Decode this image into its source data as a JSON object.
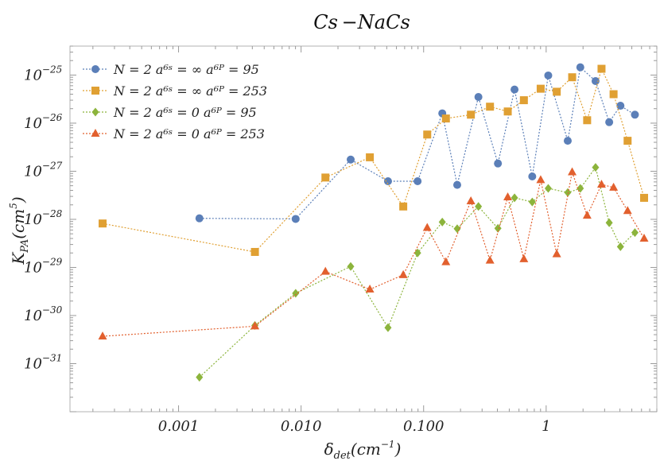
{
  "chart_data": {
    "type": "scatter",
    "title": "Cs −NaCs",
    "xlabel": {
      "main": "δ",
      "sub": "det",
      "unit_main": "(cm",
      "unit_sup": "−1",
      "unit_end": ")"
    },
    "ylabel": {
      "main": "K",
      "sub": "PA",
      "unit_main": "(cm",
      "unit_sup": "5",
      "unit_end": ")"
    },
    "x_scale": "log",
    "y_scale": "log",
    "xlim": [
      0.00013,
      8
    ],
    "ylim": [
      1e-32,
      4e-25
    ],
    "x_ticks": [
      {
        "value": 0.001,
        "label": "0.001"
      },
      {
        "value": 0.01,
        "label": "0.010"
      },
      {
        "value": 0.1,
        "label": "0.100"
      },
      {
        "value": 1,
        "label": "1"
      }
    ],
    "y_ticks": [
      {
        "exp": -31,
        "base": "10",
        "sup": "−31"
      },
      {
        "exp": -30,
        "base": "10",
        "sup": "−30"
      },
      {
        "exp": -29,
        "base": "10",
        "sup": "−29"
      },
      {
        "exp": -28,
        "base": "10",
        "sup": "−28"
      },
      {
        "exp": -27,
        "base": "10",
        "sup": "−27"
      },
      {
        "exp": -26,
        "base": "10",
        "sup": "−26"
      },
      {
        "exp": -25,
        "base": "10",
        "sup": "−25"
      }
    ],
    "legend_position": "top-left",
    "series": [
      {
        "name": "N = 2 a⁶ˢ = ∞ a⁶ᴾ = 95",
        "color": "#5b7fb8",
        "marker": "circle",
        "x": [
          0.00148,
          0.00903,
          0.0254,
          0.0512,
          0.0893,
          0.142,
          0.188,
          0.28,
          0.404,
          0.552,
          0.77,
          1.04,
          1.5,
          1.9,
          2.53,
          3.27,
          4.04,
          5.3
        ],
        "y": [
          1.05e-28,
          1.02e-28,
          1.75e-27,
          6.2e-28,
          6.2e-28,
          1.6e-26,
          5.2e-28,
          3.5e-26,
          1.45e-27,
          5e-26,
          7.8e-28,
          9.8e-26,
          4.3e-27,
          1.45e-25,
          7.5e-26,
          1.05e-26,
          2.3e-26,
          1.5e-26
        ]
      },
      {
        "name": "N = 2 a⁶ˢ = ∞ a⁶ᴾ = 253",
        "color": "#e0a033",
        "marker": "square",
        "x": [
          0.00024,
          0.0042,
          0.0158,
          0.0364,
          0.0682,
          0.107,
          0.152,
          0.243,
          0.348,
          0.486,
          0.658,
          0.902,
          1.22,
          1.63,
          2.16,
          2.83,
          3.55,
          4.62,
          6.3
        ],
        "y": [
          8.2e-29,
          2.1e-29,
          7.4e-28,
          1.95e-27,
          1.85e-28,
          5.8e-27,
          1.25e-26,
          1.5e-26,
          2.2e-26,
          1.75e-26,
          3e-26,
          5.2e-26,
          4.5e-26,
          9e-26,
          1.15e-26,
          1.35e-25,
          4e-26,
          4.3e-27,
          2.8e-28
        ]
      },
      {
        "name": "N = 2 a⁶ˢ = 0 a⁶ᴾ = 95",
        "color": "#8cb43c",
        "marker": "diamond",
        "x": [
          0.00148,
          0.0042,
          0.00903,
          0.0254,
          0.0512,
          0.0893,
          0.142,
          0.188,
          0.28,
          0.404,
          0.552,
          0.77,
          1.04,
          1.5,
          1.9,
          2.53,
          3.27,
          4.04,
          5.3
        ],
        "y": [
          5.2e-32,
          6.2e-31,
          2.9e-30,
          1.05e-29,
          5.6e-31,
          2e-29,
          8.8e-29,
          6.4e-29,
          1.85e-28,
          6.5e-29,
          2.8e-28,
          2.3e-28,
          4.4e-28,
          3.6e-28,
          4.4e-28,
          1.2e-27,
          8.5e-29,
          2.7e-29,
          5.3e-29
        ]
      },
      {
        "name": "N = 2 a⁶ˢ = 0 a⁶ᴾ = 253",
        "color": "#e2602e",
        "marker": "triangle",
        "x": [
          0.00024,
          0.0042,
          0.0158,
          0.0364,
          0.0682,
          0.107,
          0.152,
          0.243,
          0.348,
          0.486,
          0.658,
          0.902,
          1.22,
          1.63,
          2.16,
          2.83,
          3.55,
          4.62,
          6.3
        ],
        "y": [
          3.7e-31,
          6e-31,
          8.2e-30,
          3.5e-30,
          7e-30,
          6.7e-29,
          1.3e-29,
          2.4e-28,
          1.4e-29,
          2.9e-28,
          1.5e-29,
          6.6e-28,
          1.9e-29,
          9.6e-28,
          1.2e-28,
          5.3e-28,
          4.6e-28,
          1.5e-28,
          4e-29
        ]
      }
    ]
  }
}
